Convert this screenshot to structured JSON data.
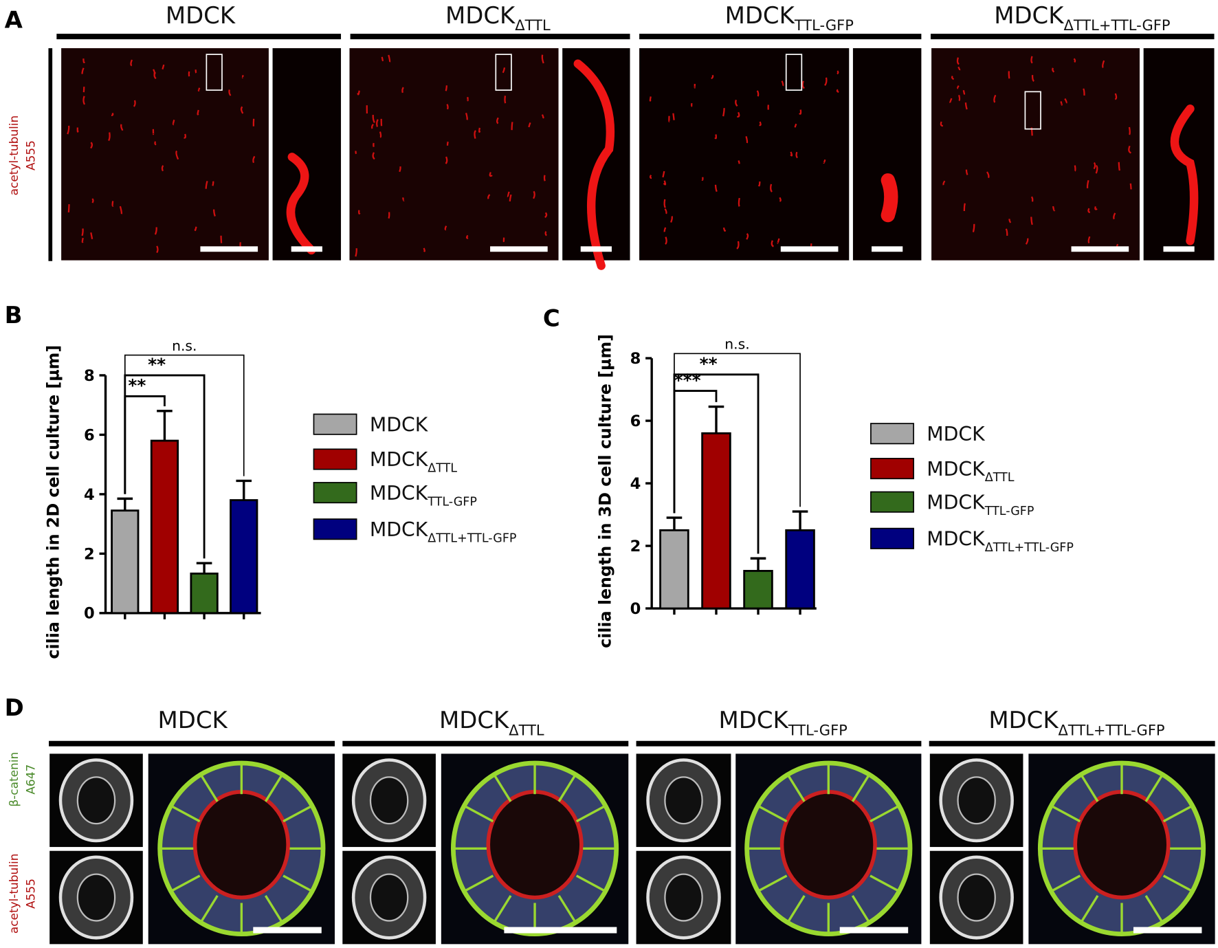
{
  "panels": {
    "a": {
      "letter": "A",
      "headers": [
        {
          "main": "MDCK"
        },
        {
          "main": "MDCK",
          "sub": "ΔTTL"
        },
        {
          "main": "MDCK",
          "sub": "TTL-GFP"
        },
        {
          "main": "MDCK",
          "sub": "ΔTTL+TTL-GFP"
        }
      ],
      "side_label": [
        "acetyl-tubulin",
        "A555"
      ]
    },
    "b": {
      "letter": "B"
    },
    "c": {
      "letter": "C"
    },
    "d": {
      "letter": "D",
      "headers": [
        {
          "main": "MDCK"
        },
        {
          "main": "MDCK",
          "sub": "ΔTTL"
        },
        {
          "main": "MDCK",
          "sub": "TTL-GFP"
        },
        {
          "main": "MDCK",
          "sub": "ΔTTL+TTL-GFP"
        }
      ],
      "side_label_top": [
        "β-catenin",
        "A647"
      ],
      "side_label_bottom": [
        "acetyl-tubulin",
        "A555"
      ]
    }
  },
  "chart_data": [
    {
      "type": "bar",
      "y_label": "cilia length in 2D cell culture [µm]",
      "categories": [
        {
          "main": "MDCK"
        },
        {
          "main": "MDCK",
          "sub": "ΔTTL"
        },
        {
          "main": "MDCK",
          "sub": "TTL-GFP"
        },
        {
          "main": "MDCK",
          "sub": "ΔTTL+TTL-GFP"
        }
      ],
      "values": [
        3.45,
        5.8,
        1.33,
        3.8
      ],
      "errors": [
        0.4,
        1.0,
        0.35,
        0.65
      ],
      "colors": [
        "#a6a6a6",
        "#a00000",
        "#336a1c",
        "#00007f"
      ],
      "significance": [
        "**",
        "**",
        "n.s."
      ],
      "ylim": [
        0,
        8
      ],
      "yticks": [
        0,
        2,
        4,
        6,
        8
      ]
    },
    {
      "type": "bar",
      "y_label": "cilia length in 3D cell culture [µm]",
      "categories": [
        {
          "main": "MDCK"
        },
        {
          "main": "MDCK",
          "sub": "ΔTTL"
        },
        {
          "main": "MDCK",
          "sub": "TTL-GFP"
        },
        {
          "main": "MDCK",
          "sub": "ΔTTL+TTL-GFP"
        }
      ],
      "values": [
        2.5,
        5.6,
        1.2,
        2.5
      ],
      "errors": [
        0.4,
        0.85,
        0.4,
        0.6
      ],
      "colors": [
        "#a6a6a6",
        "#a00000",
        "#336a1c",
        "#00007f"
      ],
      "significance": [
        "***",
        "**",
        "n.s."
      ],
      "ylim": [
        0,
        8
      ],
      "yticks": [
        0,
        2,
        4,
        6,
        8
      ]
    }
  ]
}
